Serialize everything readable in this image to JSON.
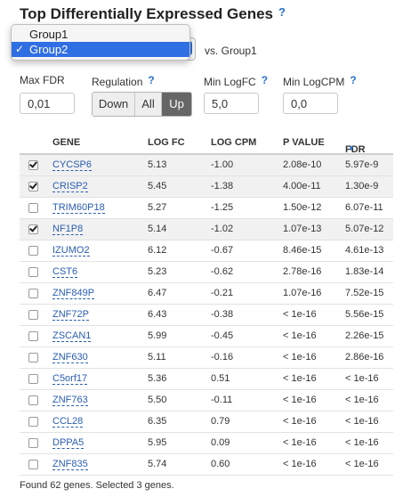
{
  "title": "Top Differentially Expressed Genes",
  "help_glyph": "?",
  "group_select": {
    "options": [
      "Group1",
      "Group2"
    ],
    "selected": "Group2",
    "check_glyph": "✓"
  },
  "vs_label": "vs. Group1",
  "filters": {
    "max_fdr": {
      "label": "Max FDR",
      "value": "0,01"
    },
    "regulation": {
      "label": "Regulation",
      "options": [
        "Down",
        "All",
        "Up"
      ],
      "active": "Up"
    },
    "min_logfc": {
      "label": "Min LogFC",
      "value": "5,0"
    },
    "min_logcpm": {
      "label": "Min LogCPM",
      "value": "0,0"
    }
  },
  "table": {
    "headers": {
      "gene": "GENE",
      "logfc": "LOG FC",
      "logcpm": "LOG CPM",
      "pvalue": "P VALUE",
      "fdr": "FDR"
    },
    "sort_glyph": "▼",
    "rows": [
      {
        "checked": true,
        "gene": "CYCSP6",
        "logfc": "5.13",
        "logcpm": "-1.00",
        "pvalue": "2.08e-10",
        "fdr": "5.97e-9"
      },
      {
        "checked": true,
        "gene": "CRISP2",
        "logfc": "5.45",
        "logcpm": "-1.38",
        "pvalue": "4.00e-11",
        "fdr": "1.30e-9"
      },
      {
        "checked": false,
        "gene": "TRIM60P18",
        "logfc": "5.27",
        "logcpm": "-1.25",
        "pvalue": "1.50e-12",
        "fdr": "6.07e-11"
      },
      {
        "checked": true,
        "gene": "NF1P8",
        "logfc": "5.14",
        "logcpm": "-1.02",
        "pvalue": "1.07e-13",
        "fdr": "5.07e-12"
      },
      {
        "checked": false,
        "gene": "IZUMO2",
        "logfc": "6.12",
        "logcpm": "-0.67",
        "pvalue": "8.46e-15",
        "fdr": "4.61e-13"
      },
      {
        "checked": false,
        "gene": "CST6",
        "logfc": "5.23",
        "logcpm": "-0.62",
        "pvalue": "2.78e-16",
        "fdr": "1.83e-14"
      },
      {
        "checked": false,
        "gene": "ZNF849P",
        "logfc": "6.47",
        "logcpm": "-0.21",
        "pvalue": "1.07e-16",
        "fdr": "7.52e-15"
      },
      {
        "checked": false,
        "gene": "ZNF72P",
        "logfc": "6.43",
        "logcpm": "-0.38",
        "pvalue": "< 1e-16",
        "fdr": "5.56e-15"
      },
      {
        "checked": false,
        "gene": "ZSCAN1",
        "logfc": "5.99",
        "logcpm": "-0.45",
        "pvalue": "< 1e-16",
        "fdr": "2.26e-15"
      },
      {
        "checked": false,
        "gene": "ZNF630",
        "logfc": "5.11",
        "logcpm": "-0.16",
        "pvalue": "< 1e-16",
        "fdr": "2.86e-16"
      },
      {
        "checked": false,
        "gene": "C5orf17",
        "logfc": "5.36",
        "logcpm": "0.51",
        "pvalue": "< 1e-16",
        "fdr": "< 1e-16"
      },
      {
        "checked": false,
        "gene": "ZNF763",
        "logfc": "5.50",
        "logcpm": "-0.11",
        "pvalue": "< 1e-16",
        "fdr": "< 1e-16"
      },
      {
        "checked": false,
        "gene": "CCL28",
        "logfc": "6.35",
        "logcpm": "0.79",
        "pvalue": "< 1e-16",
        "fdr": "< 1e-16"
      },
      {
        "checked": false,
        "gene": "DPPA5",
        "logfc": "5.95",
        "logcpm": "0.09",
        "pvalue": "< 1e-16",
        "fdr": "< 1e-16"
      },
      {
        "checked": false,
        "gene": "ZNF835",
        "logfc": "5.74",
        "logcpm": "0.60",
        "pvalue": "< 1e-16",
        "fdr": "< 1e-16"
      }
    ]
  },
  "footer": "Found 62 genes. Selected 3 genes.",
  "colors": {
    "link": "#2a5db0",
    "accent": "#2f6fe4",
    "active_button": "#666666"
  }
}
